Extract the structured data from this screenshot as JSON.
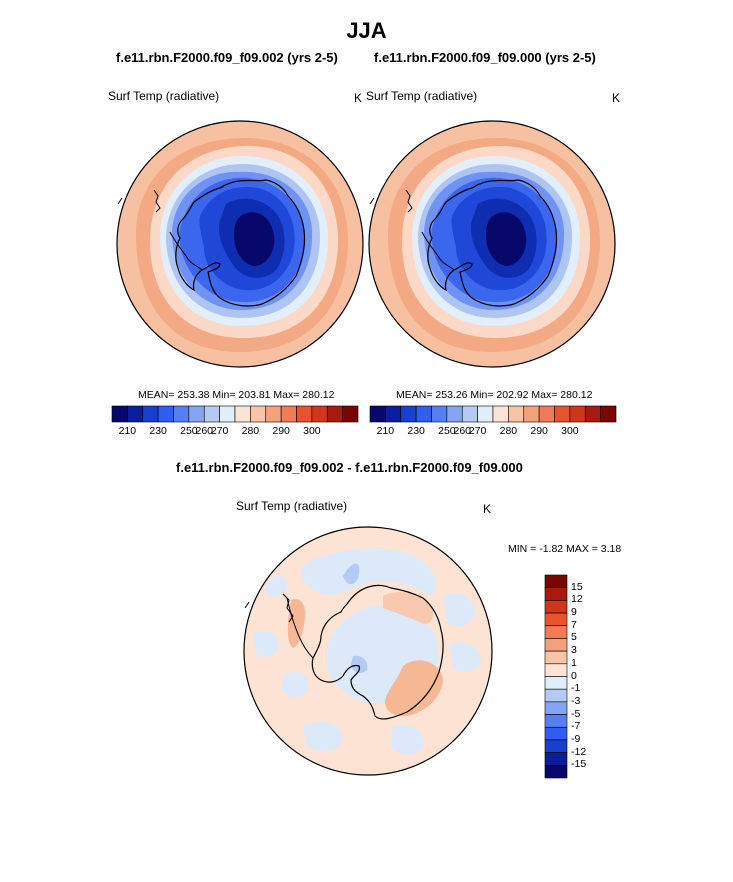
{
  "page": {
    "title": "JJA",
    "diff_title": "f.e11.rbn.F2000.f09_f09.002 - f.e11.rbn.F2000.f09_f09.000"
  },
  "panels": [
    {
      "case": "f.e11.rbn.F2000.f09_f09.002 (yrs 2-5)",
      "variable": "Surf Temp (radiative)",
      "units": "K",
      "mean": "253.38",
      "min": "203.81",
      "max": "280.12",
      "stats_text": "MEAN= 253.38  Min= 203.81  Max= 280.12"
    },
    {
      "case": "f.e11.rbn.F2000.f09_f09.000 (yrs 2-5)",
      "variable": "Surf Temp (radiative)",
      "units": "K",
      "mean": "253.26",
      "min": "202.92",
      "max": "280.12",
      "stats_text": "MEAN= 253.26  Min= 202.92  Max= 280.12"
    }
  ],
  "difference": {
    "variable": "Surf Temp (radiative)",
    "units": "K",
    "min": "-1.82",
    "max": "3.18",
    "stats_text": "MIN =  -1.82 MAX =   3.18"
  },
  "colorbar_main": {
    "labels": [
      "210",
      "230",
      "250",
      "260",
      "270",
      "280",
      "290",
      "300"
    ],
    "colors": [
      "#08086b",
      "#0a1e9c",
      "#1840cf",
      "#2e5ff0",
      "#5580f5",
      "#85a5f2",
      "#b5caf2",
      "#e0eefa",
      "#fde3d3",
      "#f8c4a6",
      "#f4a07a",
      "#f07b55",
      "#e8552d",
      "#d0361a",
      "#a81a0e",
      "#7a0505"
    ]
  },
  "colorbar_diff": {
    "labels": [
      "15",
      "12",
      "9",
      "7",
      "5",
      "3",
      "1",
      "0",
      "-1",
      "-3",
      "-5",
      "-7",
      "-9",
      "-12",
      "-15"
    ],
    "colors": [
      "#7a0505",
      "#a81a0e",
      "#d0361a",
      "#e8552d",
      "#f07b55",
      "#f4a07a",
      "#f8c4a6",
      "#fde3d3",
      "#e0eefa",
      "#b5caf2",
      "#85a5f2",
      "#5580f5",
      "#2e5ff0",
      "#1840cf",
      "#0a1e9c",
      "#08086b"
    ]
  }
}
